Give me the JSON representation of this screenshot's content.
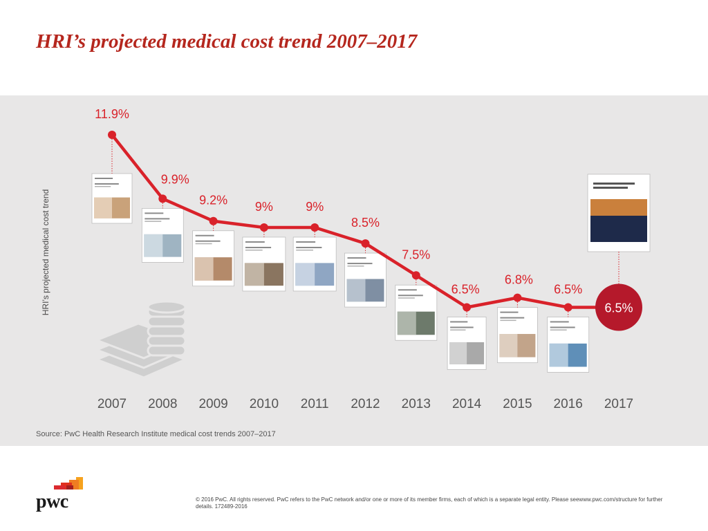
{
  "title": "HRI’s projected medical cost trend 2007–2017",
  "chart_data": {
    "type": "line",
    "title": "HRI’s projected medical cost trend 2007–2017",
    "ylabel": "HRI’s projected medical cost trend",
    "xlabel": "",
    "categories": [
      "2007",
      "2008",
      "2009",
      "2010",
      "2011",
      "2012",
      "2013",
      "2014",
      "2015",
      "2016",
      "2017"
    ],
    "series": [
      {
        "values": [
          11.9,
          9.9,
          9.2,
          9,
          9,
          8.5,
          7.5,
          6.5,
          6.8,
          6.5,
          6.5
        ],
        "labels": [
          "11.9%",
          "9.9%",
          "9.2%",
          "9%",
          "9%",
          "8.5%",
          "7.5%",
          "6.5%",
          "6.8%",
          "6.5%",
          "6.5%"
        ]
      }
    ],
    "highlight": {
      "category": "2017",
      "label": "6.5%"
    },
    "grid": false,
    "legend": "none"
  },
  "source": "Source: PwC Health Research Institute medical cost trends 2007–2017",
  "logo": {
    "text": "pwc"
  },
  "copyright": "© 2016 PwC. All rights reserved. PwC refers to the PwC network and/or one or more of its member firms, each of which is a separate legal entity. Please seewww.pwc.com/structure for further details. 172489-2016",
  "colors": {
    "accent": "#d9222a",
    "highlight": "#b5192b",
    "title": "#b5271e",
    "panel": "#e8e7e7"
  }
}
